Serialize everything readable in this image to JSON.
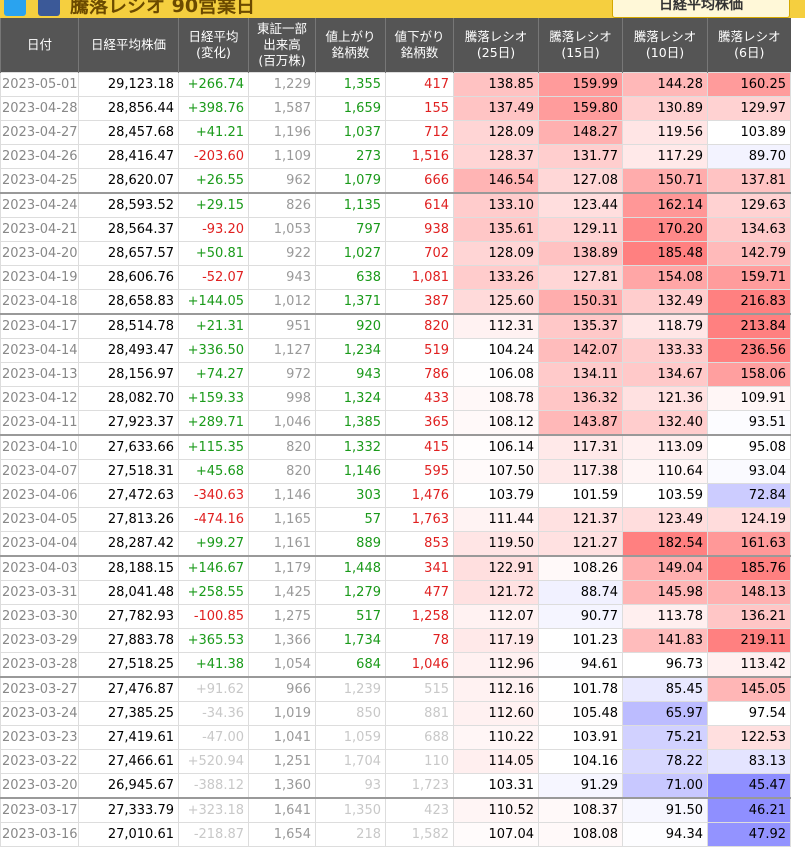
{
  "header": {
    "title": "騰落レシオ 90営業日",
    "button": "日経平均株価"
  },
  "table": {
    "columns": [
      [
        "日付"
      ],
      [
        "日経平均株価"
      ],
      [
        "日経平均",
        "(変化)"
      ],
      [
        "東証一部",
        "出来高",
        "(百万株)"
      ],
      [
        "値上がり",
        "銘柄数"
      ],
      [
        "値下がり",
        "銘柄数"
      ],
      [
        "騰落レシオ",
        "(25日)"
      ],
      [
        "騰落レシオ",
        "(15日)"
      ],
      [
        "騰落レシオ",
        "(10日)"
      ],
      [
        "騰落レシオ",
        "(6日)"
      ]
    ],
    "rows": [
      [
        "2023-05-01",
        "29,123.18",
        "+266.74",
        "1,229",
        "1,355",
        "417",
        "138.85",
        "159.99",
        "144.28",
        "160.25"
      ],
      [
        "2023-04-28",
        "28,856.44",
        "+398.76",
        "1,587",
        "1,659",
        "155",
        "137.49",
        "159.80",
        "130.89",
        "129.97"
      ],
      [
        "2023-04-27",
        "28,457.68",
        "+41.21",
        "1,196",
        "1,037",
        "712",
        "128.09",
        "148.27",
        "119.56",
        "103.89"
      ],
      [
        "2023-04-26",
        "28,416.47",
        "-203.60",
        "1,109",
        "273",
        "1,516",
        "128.37",
        "131.77",
        "117.29",
        "89.70"
      ],
      [
        "2023-04-25",
        "28,620.07",
        "+26.55",
        "962",
        "1,079",
        "666",
        "146.54",
        "127.08",
        "150.71",
        "137.81"
      ],
      [
        "2023-04-24",
        "28,593.52",
        "+29.15",
        "826",
        "1,135",
        "614",
        "133.10",
        "123.44",
        "162.14",
        "129.63"
      ],
      [
        "2023-04-21",
        "28,564.37",
        "-93.20",
        "1,053",
        "797",
        "938",
        "135.61",
        "129.11",
        "170.20",
        "134.63"
      ],
      [
        "2023-04-20",
        "28,657.57",
        "+50.81",
        "922",
        "1,027",
        "702",
        "128.09",
        "138.89",
        "185.48",
        "142.79"
      ],
      [
        "2023-04-19",
        "28,606.76",
        "-52.07",
        "943",
        "638",
        "1,081",
        "133.26",
        "127.81",
        "154.08",
        "159.71"
      ],
      [
        "2023-04-18",
        "28,658.83",
        "+144.05",
        "1,012",
        "1,371",
        "387",
        "125.60",
        "150.31",
        "132.49",
        "216.83"
      ],
      [
        "2023-04-17",
        "28,514.78",
        "+21.31",
        "951",
        "920",
        "820",
        "112.31",
        "135.37",
        "118.79",
        "213.84"
      ],
      [
        "2023-04-14",
        "28,493.47",
        "+336.50",
        "1,127",
        "1,234",
        "519",
        "104.24",
        "142.07",
        "133.33",
        "236.56"
      ],
      [
        "2023-04-13",
        "28,156.97",
        "+74.27",
        "972",
        "943",
        "786",
        "106.08",
        "134.11",
        "134.67",
        "158.06"
      ],
      [
        "2023-04-12",
        "28,082.70",
        "+159.33",
        "998",
        "1,324",
        "433",
        "108.78",
        "136.32",
        "121.36",
        "109.91"
      ],
      [
        "2023-04-11",
        "27,923.37",
        "+289.71",
        "1,046",
        "1,385",
        "365",
        "108.12",
        "143.87",
        "132.40",
        "93.51"
      ],
      [
        "2023-04-10",
        "27,633.66",
        "+115.35",
        "820",
        "1,332",
        "415",
        "106.14",
        "117.31",
        "113.09",
        "95.08"
      ],
      [
        "2023-04-07",
        "27,518.31",
        "+45.68",
        "820",
        "1,146",
        "595",
        "107.50",
        "117.38",
        "110.64",
        "93.04"
      ],
      [
        "2023-04-06",
        "27,472.63",
        "-340.63",
        "1,146",
        "303",
        "1,476",
        "103.79",
        "101.59",
        "103.59",
        "72.84"
      ],
      [
        "2023-04-05",
        "27,813.26",
        "-474.16",
        "1,165",
        "57",
        "1,763",
        "111.44",
        "121.37",
        "123.49",
        "124.19"
      ],
      [
        "2023-04-04",
        "28,287.42",
        "+99.27",
        "1,161",
        "889",
        "853",
        "119.50",
        "121.27",
        "182.54",
        "161.63"
      ],
      [
        "2023-04-03",
        "28,188.15",
        "+146.67",
        "1,179",
        "1,448",
        "341",
        "122.91",
        "108.26",
        "149.04",
        "185.76"
      ],
      [
        "2023-03-31",
        "28,041.48",
        "+258.55",
        "1,425",
        "1,279",
        "477",
        "121.72",
        "88.74",
        "145.98",
        "148.13"
      ],
      [
        "2023-03-30",
        "27,782.93",
        "-100.85",
        "1,275",
        "517",
        "1,258",
        "112.07",
        "90.77",
        "113.78",
        "136.21"
      ],
      [
        "2023-03-29",
        "27,883.78",
        "+365.53",
        "1,366",
        "1,734",
        "78",
        "117.19",
        "101.23",
        "141.83",
        "219.11"
      ],
      [
        "2023-03-28",
        "27,518.25",
        "+41.38",
        "1,054",
        "684",
        "1,046",
        "112.96",
        "94.61",
        "96.73",
        "113.42"
      ],
      [
        "2023-03-27",
        "27,476.87",
        "+91.62",
        "966",
        "1,239",
        "515",
        "112.16",
        "101.78",
        "85.45",
        "145.05"
      ],
      [
        "2023-03-24",
        "27,385.25",
        "-34.36",
        "1,019",
        "850",
        "881",
        "112.60",
        "105.48",
        "65.97",
        "97.54"
      ],
      [
        "2023-03-23",
        "27,419.61",
        "-47.00",
        "1,041",
        "1,059",
        "688",
        "110.22",
        "103.91",
        "75.21",
        "122.53"
      ],
      [
        "2023-03-22",
        "27,466.61",
        "+520.94",
        "1,251",
        "1,704",
        "110",
        "114.05",
        "104.16",
        "78.22",
        "83.13"
      ],
      [
        "2023-03-20",
        "26,945.67",
        "-388.12",
        "1,360",
        "93",
        "1,723",
        "103.31",
        "91.29",
        "71.00",
        "45.47"
      ],
      [
        "2023-03-17",
        "27,333.79",
        "+323.18",
        "1,641",
        "1,350",
        "423",
        "110.52",
        "108.37",
        "91.50",
        "46.21"
      ],
      [
        "2023-03-16",
        "27,010.61",
        "-218.87",
        "1,654",
        "218",
        "1,582",
        "107.04",
        "108.08",
        "94.34",
        "47.92"
      ]
    ]
  }
}
